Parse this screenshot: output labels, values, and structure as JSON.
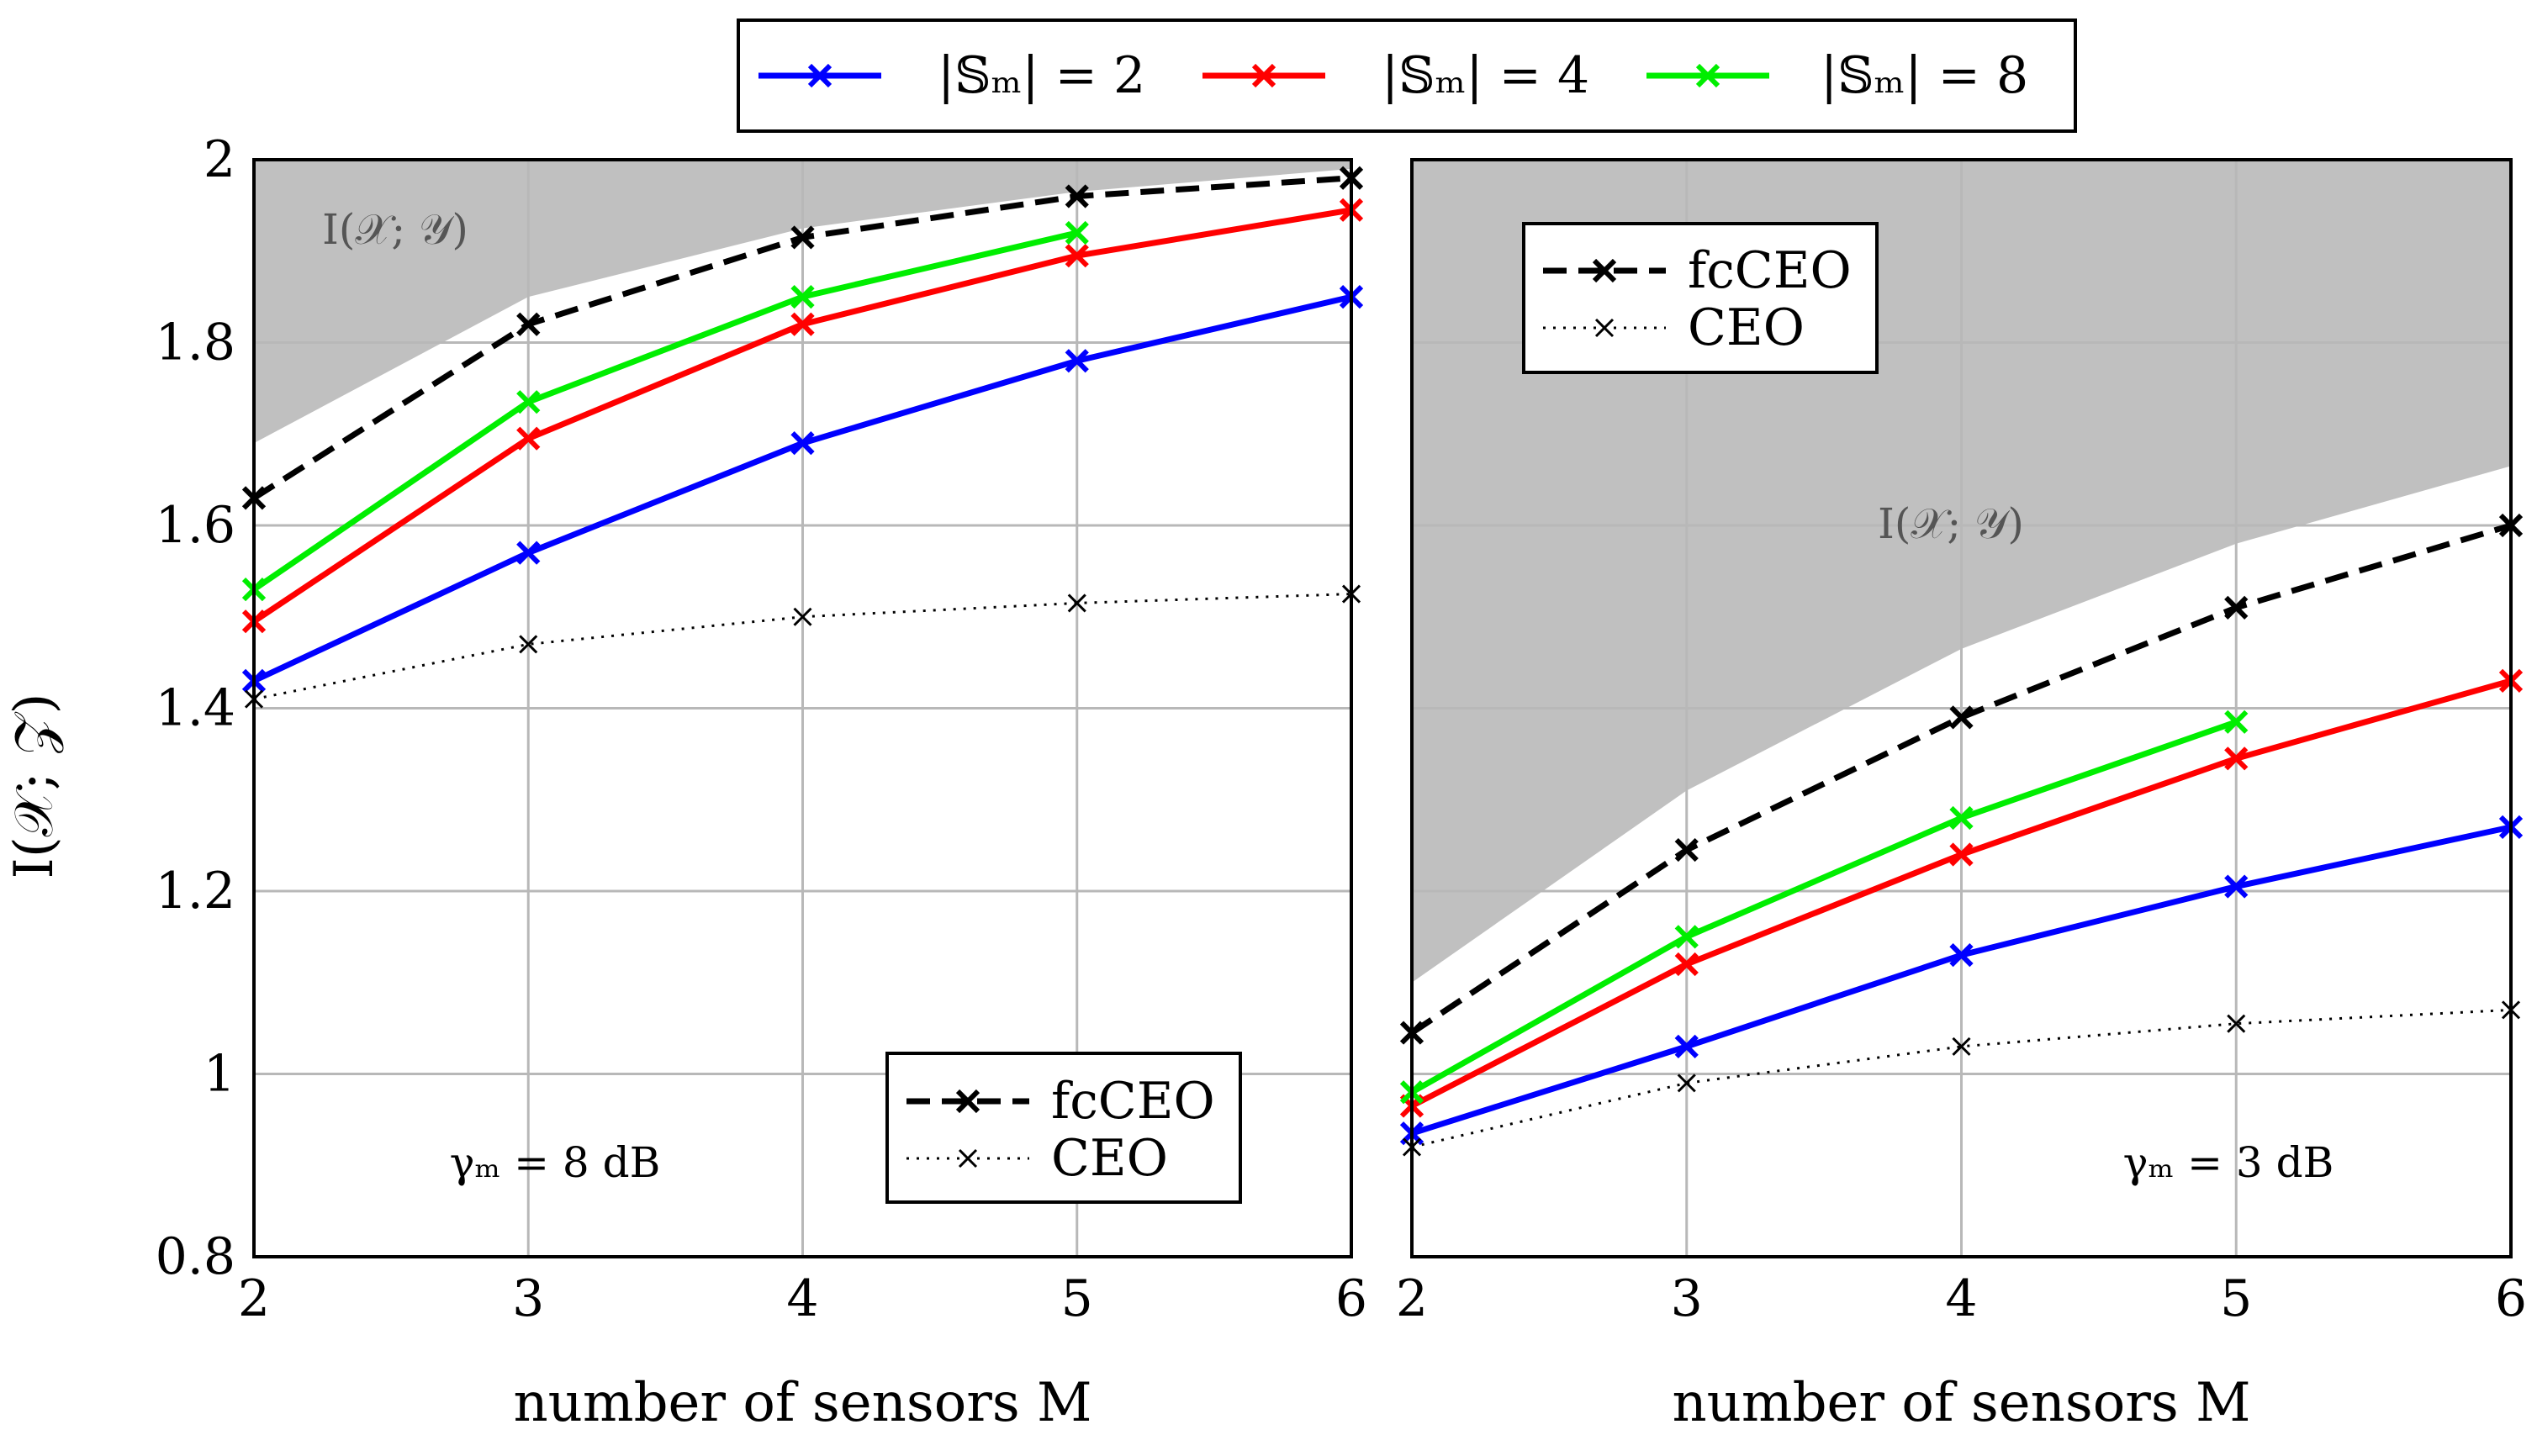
{
  "colors": {
    "s2": "#0000ff",
    "s4": "#ff0000",
    "s8": "#00ee00",
    "fcceo": "#000000",
    "ceo": "#000000",
    "bound_fill": "#c0c0c0",
    "grid": "#b8b8b8"
  },
  "legend_top": {
    "s2": "|𝕊ₘ| = 2",
    "s4": "|𝕊ₘ| = 4",
    "s8": "|𝕊ₘ| = 8"
  },
  "legend_panel": {
    "fcceo": "fcCEO",
    "ceo": "CEO"
  },
  "ylabel": "I(𝒳; 𝒵)",
  "chart_data": [
    {
      "type": "line",
      "xlabel": "number of sensors M",
      "ylabel": "I(𝒳; 𝒵)",
      "annotation": "γₘ = 8 dB",
      "bound_label": "I(𝒳; 𝒴)",
      "xlim": [
        2,
        6
      ],
      "ylim": [
        0.8,
        2
      ],
      "xticks": [
        2,
        3,
        4,
        5,
        6
      ],
      "yticks": [
        0.8,
        1,
        1.2,
        1.4,
        1.6,
        1.8,
        2
      ],
      "ytick_labels": [
        "0.8",
        "1",
        "1.2",
        "1.4",
        "1.6",
        "1.8",
        "2"
      ],
      "grid": true,
      "bound": {
        "x": [
          2,
          3,
          4,
          5,
          6
        ],
        "y": [
          1.69,
          1.85,
          1.925,
          1.965,
          1.99
        ]
      },
      "series": [
        {
          "key": "s2",
          "style": "solid",
          "x": [
            2,
            3,
            4,
            5,
            6
          ],
          "y": [
            1.43,
            1.57,
            1.69,
            1.78,
            1.85
          ]
        },
        {
          "key": "s4",
          "style": "solid",
          "x": [
            2,
            3,
            4,
            5,
            6
          ],
          "y": [
            1.495,
            1.695,
            1.82,
            1.895,
            1.945
          ]
        },
        {
          "key": "s8",
          "style": "solid",
          "x": [
            2,
            3,
            4,
            5
          ],
          "y": [
            1.53,
            1.735,
            1.85,
            1.92
          ]
        },
        {
          "key": "fcceo",
          "style": "dashed",
          "x": [
            2,
            3,
            4,
            5,
            6
          ],
          "y": [
            1.63,
            1.82,
            1.915,
            1.96,
            1.98
          ]
        },
        {
          "key": "ceo",
          "style": "dotted",
          "x": [
            2,
            3,
            4,
            5,
            6
          ],
          "y": [
            1.41,
            1.47,
            1.5,
            1.515,
            1.525
          ]
        }
      ]
    },
    {
      "type": "line",
      "xlabel": "number of sensors M",
      "annotation": "γₘ = 3 dB",
      "bound_label": "I(𝒳; 𝒴)",
      "xlim": [
        2,
        6
      ],
      "ylim": [
        0.8,
        2
      ],
      "xticks": [
        2,
        3,
        4,
        5,
        6
      ],
      "grid": true,
      "bound": {
        "x": [
          2,
          3,
          4,
          5,
          6
        ],
        "y": [
          1.1,
          1.31,
          1.465,
          1.58,
          1.665
        ]
      },
      "series": [
        {
          "key": "s2",
          "style": "solid",
          "x": [
            2,
            3,
            4,
            5,
            6
          ],
          "y": [
            0.935,
            1.03,
            1.13,
            1.205,
            1.27
          ]
        },
        {
          "key": "s4",
          "style": "solid",
          "x": [
            2,
            3,
            4,
            5,
            6
          ],
          "y": [
            0.965,
            1.12,
            1.24,
            1.345,
            1.43
          ]
        },
        {
          "key": "s8",
          "style": "solid",
          "x": [
            2,
            3,
            4,
            5
          ],
          "y": [
            0.98,
            1.15,
            1.28,
            1.385
          ]
        },
        {
          "key": "fcceo",
          "style": "dashed",
          "x": [
            2,
            3,
            4,
            5,
            6
          ],
          "y": [
            1.045,
            1.245,
            1.39,
            1.51,
            1.6
          ]
        },
        {
          "key": "ceo",
          "style": "dotted",
          "x": [
            2,
            3,
            4,
            5,
            6
          ],
          "y": [
            0.92,
            0.99,
            1.03,
            1.055,
            1.07
          ]
        }
      ]
    }
  ]
}
